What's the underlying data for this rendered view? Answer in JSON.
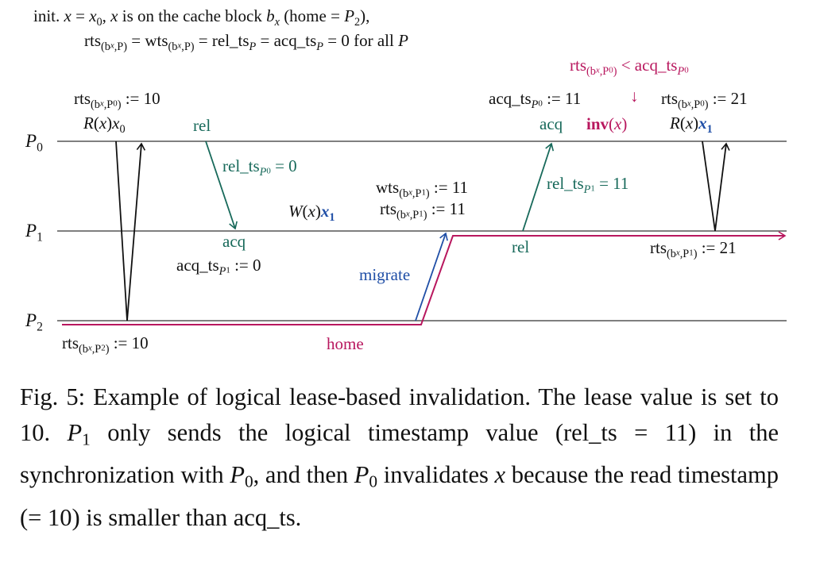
{
  "colors": {
    "green": "#17695a",
    "magenta": "#b8175e",
    "blue": "#1f4ea6",
    "line": "#555555",
    "black": "#111111"
  },
  "processors": [
    [
      {
        "t": "P",
        "c": "i"
      },
      {
        "t": "0",
        "c": "s1"
      }
    ],
    [
      {
        "t": "P",
        "c": "i"
      },
      {
        "t": "1",
        "c": "s1"
      }
    ],
    [
      {
        "t": "P",
        "c": "i"
      },
      {
        "t": "2",
        "c": "s1"
      }
    ]
  ],
  "labels": {
    "init1": [
      {
        "t": "init. "
      },
      {
        "t": "x",
        "c": "i"
      },
      {
        "t": " = "
      },
      {
        "t": "x",
        "c": "i"
      },
      {
        "t": "0",
        "c": "s1"
      },
      {
        "t": ", "
      },
      {
        "t": "x",
        "c": "i"
      },
      {
        "t": " is on the cache block "
      },
      {
        "t": "b",
        "c": "i"
      },
      {
        "t": "x",
        "c": "s1 i"
      },
      {
        "t": " (home = "
      },
      {
        "t": "P",
        "c": "i"
      },
      {
        "t": "2",
        "c": "s1"
      },
      {
        "t": "),"
      }
    ],
    "init2": [
      {
        "t": "rts"
      },
      {
        "t": "(b",
        "c": "s1"
      },
      {
        "t": "x",
        "c": "s2 i"
      },
      {
        "t": ",P",
        "c": "s1"
      },
      {
        "t": ")",
        "c": "s1"
      },
      {
        "t": " = wts"
      },
      {
        "t": "(b",
        "c": "s1"
      },
      {
        "t": "x",
        "c": "s2 i"
      },
      {
        "t": ",P",
        "c": "s1"
      },
      {
        "t": ")",
        "c": "s1"
      },
      {
        "t": " = rel_ts"
      },
      {
        "t": "P",
        "c": "s1 i"
      },
      {
        "t": " = acq_ts"
      },
      {
        "t": "P",
        "c": "s1 i"
      },
      {
        "t": " = 0 for all "
      },
      {
        "t": "P",
        "c": "i"
      }
    ],
    "rts_p0_10": [
      {
        "t": "rts"
      },
      {
        "t": "(b",
        "c": "s1"
      },
      {
        "t": "x",
        "c": "s2 i"
      },
      {
        "t": ",P",
        "c": "s1"
      },
      {
        "t": "0",
        "c": "s2"
      },
      {
        "t": ")",
        "c": "s1"
      },
      {
        "t": " := 10"
      }
    ],
    "read_x0": [
      {
        "t": "R",
        "c": "i"
      },
      {
        "t": "("
      },
      {
        "t": "x",
        "c": "i"
      },
      {
        "t": ")"
      },
      {
        "t": "x",
        "c": "i"
      },
      {
        "t": "0",
        "c": "s1"
      }
    ],
    "rel_p0": [
      {
        "t": "rel"
      }
    ],
    "rel_ts_p0": [
      {
        "t": "rel_ts"
      },
      {
        "t": "P",
        "c": "s1 i"
      },
      {
        "t": "0",
        "c": "s2"
      },
      {
        "t": " = 0"
      }
    ],
    "wts_p1_11": [
      {
        "t": "wts"
      },
      {
        "t": "(b",
        "c": "s1"
      },
      {
        "t": "x",
        "c": "s2 i"
      },
      {
        "t": ",P",
        "c": "s1"
      },
      {
        "t": "1",
        "c": "s2"
      },
      {
        "t": ")",
        "c": "s1"
      },
      {
        "t": " := 11"
      }
    ],
    "rts_p1_11": [
      {
        "t": "rts"
      },
      {
        "t": "(b",
        "c": "s1"
      },
      {
        "t": "x",
        "c": "s2 i"
      },
      {
        "t": ",P",
        "c": "s1"
      },
      {
        "t": "1",
        "c": "s2"
      },
      {
        "t": ")",
        "c": "s1"
      },
      {
        "t": " := 11"
      }
    ],
    "write_x1": [
      {
        "t": "W",
        "c": "i"
      },
      {
        "t": "("
      },
      {
        "t": "x",
        "c": "i"
      },
      {
        "t": ")"
      },
      {
        "t": "x",
        "c": "i b blue"
      },
      {
        "t": "1",
        "c": "s1 b blue"
      }
    ],
    "acq_p1": [
      {
        "t": "acq"
      }
    ],
    "acq_ts_p1": [
      {
        "t": "acq_ts"
      },
      {
        "t": "P",
        "c": "s1 i"
      },
      {
        "t": "1",
        "c": "s2"
      },
      {
        "t": " := 0"
      }
    ],
    "migrate": [
      {
        "t": "migrate"
      }
    ],
    "rel_p1": [
      {
        "t": "rel"
      }
    ],
    "rel_ts_p1": [
      {
        "t": "rel_ts"
      },
      {
        "t": "P",
        "c": "s1 i"
      },
      {
        "t": "1",
        "c": "s2"
      },
      {
        "t": " = 11"
      }
    ],
    "condition": [
      {
        "t": "rts"
      },
      {
        "t": "(b",
        "c": "s1"
      },
      {
        "t": "x",
        "c": "s2 i"
      },
      {
        "t": ",P",
        "c": "s1"
      },
      {
        "t": "0",
        "c": "s2"
      },
      {
        "t": ")",
        "c": "s1"
      },
      {
        "t": " < acq_ts"
      },
      {
        "t": "P",
        "c": "s1 i"
      },
      {
        "t": "0",
        "c": "s2"
      }
    ],
    "down_arrow": [
      {
        "t": "↓"
      }
    ],
    "acq_ts_p0": [
      {
        "t": "acq_ts"
      },
      {
        "t": "P",
        "c": "s1 i"
      },
      {
        "t": "0",
        "c": "s2"
      },
      {
        "t": " := 11"
      }
    ],
    "rts_p0_21": [
      {
        "t": "rts"
      },
      {
        "t": "(b",
        "c": "s1"
      },
      {
        "t": "x",
        "c": "s2 i"
      },
      {
        "t": ",P",
        "c": "s1"
      },
      {
        "t": "0",
        "c": "s2"
      },
      {
        "t": ")",
        "c": "s1"
      },
      {
        "t": " := 21"
      }
    ],
    "acq_p0": [
      {
        "t": "acq"
      }
    ],
    "inv": [
      {
        "t": "inv",
        "c": "b"
      },
      {
        "t": "("
      },
      {
        "t": "x",
        "c": "i"
      },
      {
        "t": ")"
      }
    ],
    "read_x1": [
      {
        "t": "R",
        "c": "i"
      },
      {
        "t": "("
      },
      {
        "t": "x",
        "c": "i"
      },
      {
        "t": ")"
      },
      {
        "t": "x",
        "c": "i b blue"
      },
      {
        "t": "1",
        "c": "s1 b blue"
      }
    ],
    "rts_p1_21": [
      {
        "t": "rts"
      },
      {
        "t": "(b",
        "c": "s1"
      },
      {
        "t": "x",
        "c": "s2 i"
      },
      {
        "t": ",P",
        "c": "s1"
      },
      {
        "t": "1",
        "c": "s2"
      },
      {
        "t": ")",
        "c": "s1"
      },
      {
        "t": " := 21"
      }
    ],
    "rts_p2_10": [
      {
        "t": "rts"
      },
      {
        "t": "(b",
        "c": "s1"
      },
      {
        "t": "x",
        "c": "s2 i"
      },
      {
        "t": ",P",
        "c": "s1"
      },
      {
        "t": "2",
        "c": "s2"
      },
      {
        "t": ")",
        "c": "s1"
      },
      {
        "t": " := 10"
      }
    ],
    "home": [
      {
        "t": "home"
      }
    ]
  },
  "caption": [
    {
      "t": "Fig. 5: Example of logical lease-based invalidation. The lease value is set to 10. "
    },
    {
      "t": "P",
      "c": "i"
    },
    {
      "t": "1",
      "c": "s1"
    },
    {
      "t": " only sends the logical timestamp value (rel_ts = 11) in the synchronization with "
    },
    {
      "t": "P",
      "c": "i"
    },
    {
      "t": "0",
      "c": "s1"
    },
    {
      "t": ", and then "
    },
    {
      "t": "P",
      "c": "i"
    },
    {
      "t": "0",
      "c": "s1"
    },
    {
      "t": " invalidates "
    },
    {
      "t": "x",
      "c": "i"
    },
    {
      "t": " because the read timestamp (= 10) is smaller than acq_ts."
    }
  ]
}
